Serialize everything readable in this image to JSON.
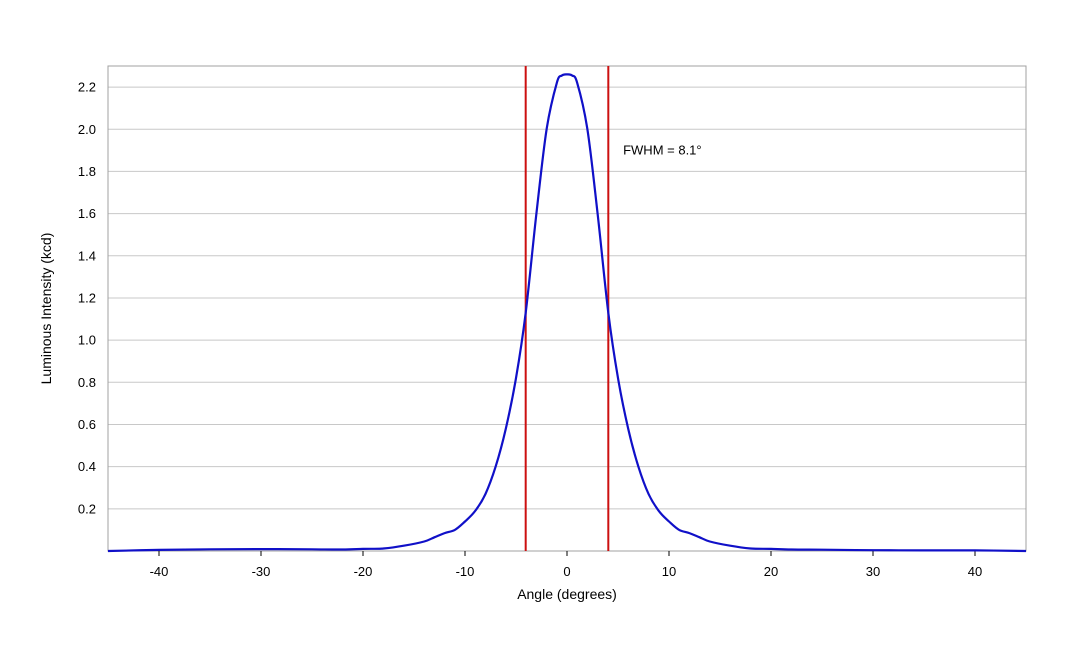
{
  "chart_data": {
    "type": "line",
    "xlabel": "Angle (degrees)",
    "ylabel": "Luminous Intensity (kcd)",
    "xlim": [
      -45,
      45
    ],
    "ylim": [
      0,
      2.3
    ],
    "x_ticks": [
      -40,
      -30,
      -20,
      -10,
      0,
      10,
      20,
      30,
      40
    ],
    "y_ticks": [
      0.2,
      0.4,
      0.6,
      0.8,
      1.0,
      1.2,
      1.4,
      1.6,
      1.8,
      2.0,
      2.2
    ],
    "y_tick_labels": [
      "0.2",
      "0.4",
      "0.6",
      "0.8",
      "1.0",
      "1.2",
      "1.4",
      "1.6",
      "1.8",
      "2.0",
      "2.2"
    ],
    "grid": "horizontal",
    "colors": {
      "curve": "#1010c8",
      "markers": "#cc1010",
      "grid": "#c8c8c8",
      "frame": "#a0a0a0"
    },
    "series": [
      {
        "x": [
          -45,
          -40,
          -35,
          -30,
          -25,
          -22,
          -20,
          -18,
          -16,
          -14,
          -13,
          -12,
          -11,
          -10,
          -9,
          -8,
          -7,
          -6,
          -5,
          -4.05,
          -3,
          -2,
          -1,
          -0.5,
          0,
          0.5,
          1,
          2,
          3,
          4.05,
          5,
          6,
          7,
          8,
          9,
          10,
          11,
          12,
          13,
          14,
          16,
          18,
          20,
          22,
          25,
          30,
          35,
          40,
          45
        ],
        "y": [
          0.0,
          0.005,
          0.008,
          0.009,
          0.008,
          0.007,
          0.01,
          0.012,
          0.025,
          0.045,
          0.065,
          0.085,
          0.1,
          0.14,
          0.19,
          0.27,
          0.4,
          0.58,
          0.82,
          1.13,
          1.6,
          2.0,
          2.22,
          2.255,
          2.26,
          2.255,
          2.22,
          2.0,
          1.6,
          1.13,
          0.82,
          0.58,
          0.4,
          0.27,
          0.19,
          0.14,
          0.1,
          0.085,
          0.065,
          0.045,
          0.025,
          0.012,
          0.01,
          0.007,
          0.006,
          0.004,
          0.003,
          0.003,
          0.0
        ]
      }
    ],
    "markers": [
      -4.05,
      4.05
    ],
    "annotation": {
      "text": "FWHM = 8.1°",
      "x": 5.5,
      "y": 1.88
    }
  }
}
